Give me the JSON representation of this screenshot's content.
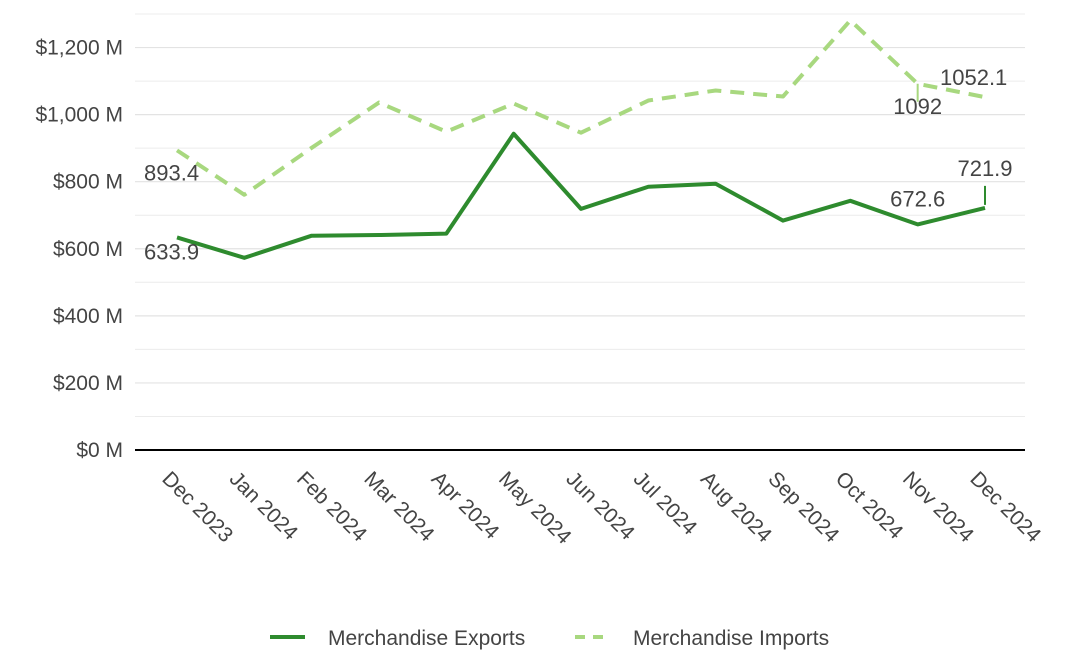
{
  "chart_data": {
    "type": "line",
    "categories": [
      "Dec 2023",
      "Jan 2024",
      "Feb 2024",
      "Mar 2024",
      "Apr 2024",
      "May 2024",
      "Jun 2024",
      "Jul 2024",
      "Aug 2024",
      "Sep 2024",
      "Oct 2024",
      "Nov 2024",
      "Dec 2024"
    ],
    "series": [
      {
        "name": "Merchandise Exports",
        "color": "#2e8b2e",
        "dash": false,
        "values": [
          633.9,
          573,
          639,
          641,
          645,
          943,
          719,
          785,
          794,
          684,
          743,
          672.6,
          721.9
        ],
        "value_labels": [
          "633.9",
          null,
          null,
          null,
          null,
          null,
          null,
          null,
          null,
          null,
          null,
          "672.6",
          "721.9"
        ]
      },
      {
        "name": "Merchandise Imports",
        "color": "#a8d87f",
        "dash": true,
        "values": [
          893.4,
          761,
          901,
          1036,
          949,
          1033,
          946,
          1042,
          1072,
          1054,
          1281,
          1092,
          1052.1
        ],
        "value_labels": [
          "893.4",
          null,
          null,
          null,
          null,
          null,
          null,
          null,
          null,
          null,
          null,
          "1092",
          "1052.1"
        ]
      }
    ],
    "ylim": [
      0,
      1300
    ],
    "yticks": [
      {
        "value": 0,
        "label": "$0 M"
      },
      {
        "value": 200,
        "label": "$200 M"
      },
      {
        "value": 400,
        "label": "$400 M"
      },
      {
        "value": 600,
        "label": "$600 M"
      },
      {
        "value": 800,
        "label": "$800 M"
      },
      {
        "value": 1000,
        "label": "$1,000 M"
      },
      {
        "value": 1200,
        "label": "$1,200 M"
      }
    ],
    "minor_yticks": [
      100,
      300,
      500,
      700,
      900,
      1100,
      1300
    ],
    "grid": true,
    "legend": "bottom"
  }
}
